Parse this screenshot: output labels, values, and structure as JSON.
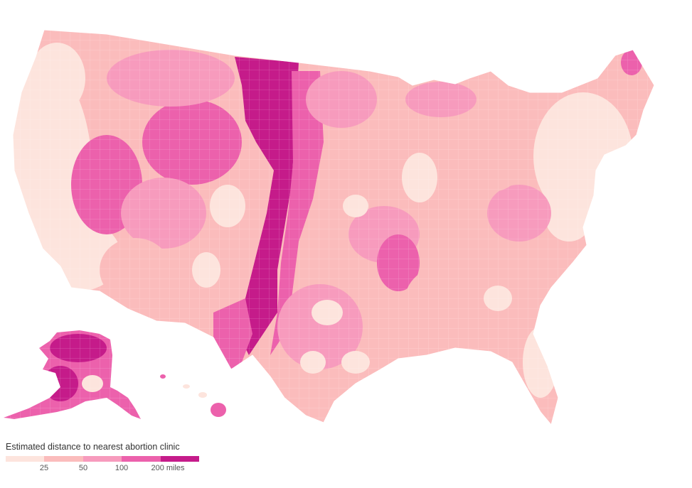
{
  "map": {
    "type": "choropleth",
    "region": "United States (contiguous, Alaska, Hawaii)",
    "scale_colors": [
      "#fde4dd",
      "#fbbcbc",
      "#f79bbd",
      "#ec61ac",
      "#c51b8a"
    ],
    "border_color": "#ffffff"
  },
  "legend": {
    "title": "Estimated distance to nearest abortion clinic",
    "ticks": [
      "25",
      "50",
      "100",
      "200 miles"
    ]
  }
}
